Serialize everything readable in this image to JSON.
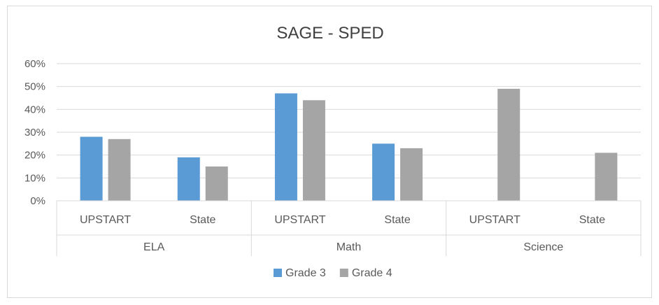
{
  "chart_data": {
    "type": "bar",
    "title": "SAGE - SPED",
    "xlabel": "",
    "ylabel": "",
    "ylim": [
      0,
      60
    ],
    "yticks": [
      "0%",
      "10%",
      "20%",
      "30%",
      "40%",
      "50%",
      "60%"
    ],
    "grid": true,
    "legend_position": "bottom",
    "groups": [
      {
        "label": "ELA",
        "categories": [
          "UPSTART",
          "State"
        ]
      },
      {
        "label": "Math",
        "categories": [
          "UPSTART",
          "State"
        ]
      },
      {
        "label": "Science",
        "categories": [
          "UPSTART",
          "State"
        ]
      }
    ],
    "series": [
      {
        "name": "Grade 3",
        "color": "#5b9bd5",
        "values": [
          28,
          19,
          47,
          25,
          null,
          null
        ]
      },
      {
        "name": "Grade 4",
        "color": "#a5a5a5",
        "values": [
          27,
          15,
          44,
          23,
          49,
          21
        ]
      }
    ]
  }
}
